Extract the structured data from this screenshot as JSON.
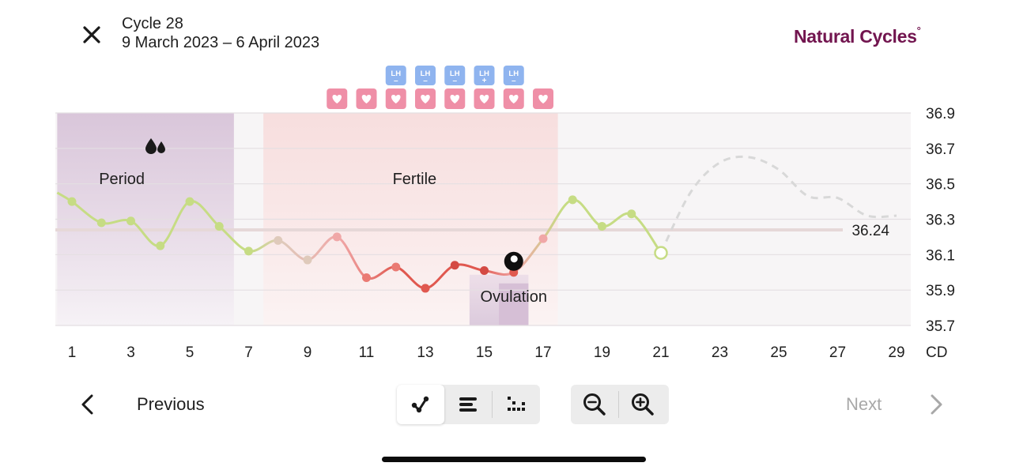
{
  "header": {
    "cycle_label": "Cycle 28",
    "date_range": "9 March 2023 – 6 April 2023",
    "brand": "Natural Cycles",
    "brand_mark": "°"
  },
  "chart_data": {
    "type": "line",
    "x_unit": "CD",
    "x_ticks": [
      1,
      3,
      5,
      7,
      9,
      11,
      13,
      15,
      17,
      19,
      21,
      23,
      25,
      27,
      29
    ],
    "y_ticks": [
      36.9,
      36.7,
      36.5,
      36.3,
      36.1,
      35.9,
      35.7
    ],
    "ylim": [
      35.7,
      36.9
    ],
    "xlim": [
      0.5,
      29.5
    ],
    "series": [
      {
        "values": [
          {
            "x": 0.5,
            "y": 36.45
          },
          {
            "x": 1,
            "y": 36.4
          },
          {
            "x": 2,
            "y": 36.28
          },
          {
            "x": 3,
            "y": 36.29
          },
          {
            "x": 4,
            "y": 36.15
          },
          {
            "x": 5,
            "y": 36.4
          },
          {
            "x": 6,
            "y": 36.26
          },
          {
            "x": 7,
            "y": 36.12
          },
          {
            "x": 8,
            "y": 36.18
          },
          {
            "x": 9,
            "y": 36.07
          },
          {
            "x": 10,
            "y": 36.2
          },
          {
            "x": 11,
            "y": 35.97
          },
          {
            "x": 12,
            "y": 36.03
          },
          {
            "x": 13,
            "y": 35.91
          },
          {
            "x": 14,
            "y": 36.04
          },
          {
            "x": 15,
            "y": 36.01
          },
          {
            "x": 16,
            "y": 36.0
          },
          {
            "x": 17,
            "y": 36.19
          },
          {
            "x": 18,
            "y": 36.41
          },
          {
            "x": 19,
            "y": 36.26
          },
          {
            "x": 20,
            "y": 36.33
          },
          {
            "x": 21,
            "y": 36.11
          }
        ]
      }
    ],
    "prediction": [
      {
        "x": 21,
        "y": 36.11
      },
      {
        "x": 22,
        "y": 36.45
      },
      {
        "x": 23,
        "y": 36.62
      },
      {
        "x": 24,
        "y": 36.65
      },
      {
        "x": 25,
        "y": 36.58
      },
      {
        "x": 26,
        "y": 36.43
      },
      {
        "x": 27,
        "y": 36.42
      },
      {
        "x": 28,
        "y": 36.32
      },
      {
        "x": 29,
        "y": 36.32
      }
    ],
    "coverline": {
      "value": 36.24,
      "label": "36.24"
    },
    "zones": [
      {
        "label": "Period",
        "from": 0.5,
        "to": 6.5
      },
      {
        "label": "Fertile",
        "from": 7.5,
        "to": 17.5
      },
      {
        "label": "Ovulation",
        "from": 14.5,
        "to": 16.5
      }
    ],
    "ovulation_day": 16,
    "sex_days": [
      10,
      11,
      12,
      13,
      14,
      15,
      16,
      17
    ],
    "lh_tests": [
      {
        "day": 12,
        "result": "LH–"
      },
      {
        "day": 13,
        "result": "LH–"
      },
      {
        "day": 14,
        "result": "LH–"
      },
      {
        "day": 15,
        "result": "LH+"
      },
      {
        "day": 16,
        "result": "LH–"
      }
    ],
    "colors": {
      "green": "#c6dc84",
      "beige": "#dfcabb",
      "pink": "#f0a7a7",
      "red": "#e0584f",
      "brand": "#72154f",
      "lh_badge": "#8fb4ef",
      "heart_badge": "#ef8fa7"
    }
  },
  "nav": {
    "previous_label": "Previous",
    "next_label": "Next"
  },
  "view_toggle": {
    "options": [
      "graph-view-icon",
      "list-view-icon",
      "dots-view-icon"
    ],
    "selected": "graph-view-icon"
  },
  "zoom": {
    "out_icon": "zoom-out-icon",
    "in_icon": "zoom-in-icon"
  }
}
